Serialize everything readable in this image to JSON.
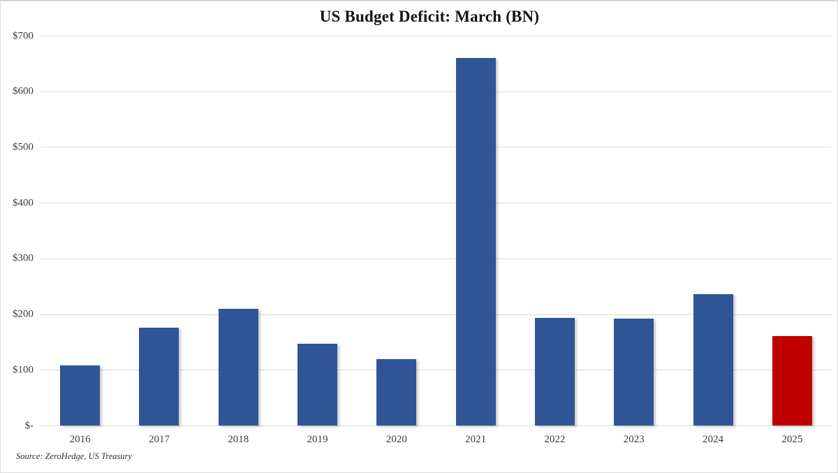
{
  "frame": {
    "source_note": "Source: ZeroHedge, US Treasury"
  },
  "chart_data": {
    "type": "bar",
    "title": "US Budget Deficit: March (BN)",
    "xlabel": "",
    "ylabel": "",
    "categories": [
      "2016",
      "2017",
      "2018",
      "2019",
      "2020",
      "2021",
      "2022",
      "2023",
      "2024",
      "2025"
    ],
    "values": [
      108,
      176,
      209,
      147,
      119,
      660,
      193,
      192,
      236,
      161
    ],
    "bar_colors": [
      "#2F5597",
      "#2F5597",
      "#2F5597",
      "#2F5597",
      "#2F5597",
      "#2F5597",
      "#2F5597",
      "#2F5597",
      "#2F5597",
      "#C00000"
    ],
    "highlight_category": "2025",
    "ylim": [
      0,
      700
    ],
    "y_ticks": [
      {
        "value": 700,
        "label": "$700"
      },
      {
        "value": 600,
        "label": "$600"
      },
      {
        "value": 500,
        "label": "$500"
      },
      {
        "value": 400,
        "label": "$400"
      },
      {
        "value": 300,
        "label": "$300"
      },
      {
        "value": 200,
        "label": "$200"
      },
      {
        "value": 100,
        "label": "$100"
      },
      {
        "value": 0,
        "label": "$-"
      }
    ],
    "grid": true,
    "legend_position": "none"
  },
  "colors": {
    "bar_blue": "#2F5597",
    "bar_red": "#C00000",
    "gridline": "#D9D9D9",
    "title_text": "#141414",
    "axis_text": "#3D3D3D"
  }
}
